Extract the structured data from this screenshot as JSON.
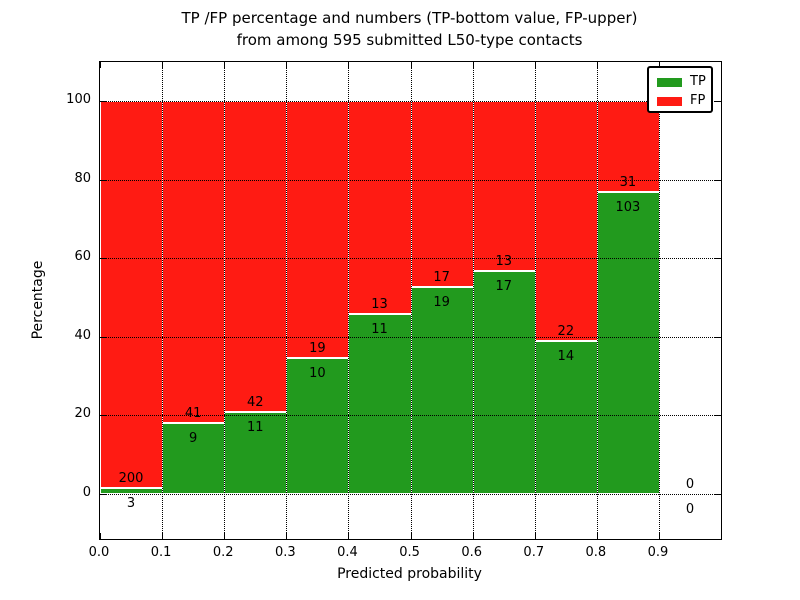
{
  "figure": {
    "title_line1": "TP /FP percentage and numbers (TP-bottom value, FP-upper)",
    "title_line2": "from among 595 submitted L50-type contacts",
    "xlabel": "Predicted probability",
    "ylabel": "Percentage"
  },
  "legend": {
    "items": [
      {
        "label": "TP",
        "color": "#229a1e"
      },
      {
        "label": "FP",
        "color": "#ff1b13"
      }
    ]
  },
  "axes": {
    "xtick_labels": [
      "0.0",
      "0.1",
      "0.2",
      "0.3",
      "0.4",
      "0.5",
      "0.6",
      "0.7",
      "0.8",
      "0.9"
    ],
    "ytick_labels": [
      "0",
      "20",
      "40",
      "60",
      "80",
      "100"
    ],
    "ytick_values": [
      0,
      20,
      40,
      60,
      80,
      100
    ],
    "xlim": [
      0.0,
      1.0
    ],
    "ylim": [
      -11.5,
      110
    ],
    "grid_style": "dotted"
  },
  "chart_data": {
    "type": "bar",
    "stacked": true,
    "normalized_to_percent": true,
    "title": "TP /FP percentage and numbers (TP-bottom value, FP-upper) from among 595 submitted L50-type contacts",
    "xlabel": "Predicted probability",
    "ylabel": "Percentage",
    "total_contacts": 595,
    "bin_width": 0.1,
    "bin_starts": [
      0.0,
      0.1,
      0.2,
      0.3,
      0.4,
      0.5,
      0.6,
      0.7,
      0.8,
      0.9
    ],
    "series": [
      {
        "name": "TP",
        "color": "#229a1e",
        "counts": [
          3,
          9,
          11,
          10,
          11,
          19,
          17,
          14,
          103,
          0
        ]
      },
      {
        "name": "FP",
        "color": "#ff1b13",
        "counts": [
          200,
          41,
          42,
          19,
          13,
          17,
          13,
          22,
          31,
          0
        ]
      }
    ],
    "tp_percent_of_bin": [
      1.48,
      18.0,
      20.75,
      34.48,
      45.83,
      52.78,
      56.67,
      38.89,
      76.87,
      0
    ],
    "legend_position": "upper right",
    "grid": true
  }
}
